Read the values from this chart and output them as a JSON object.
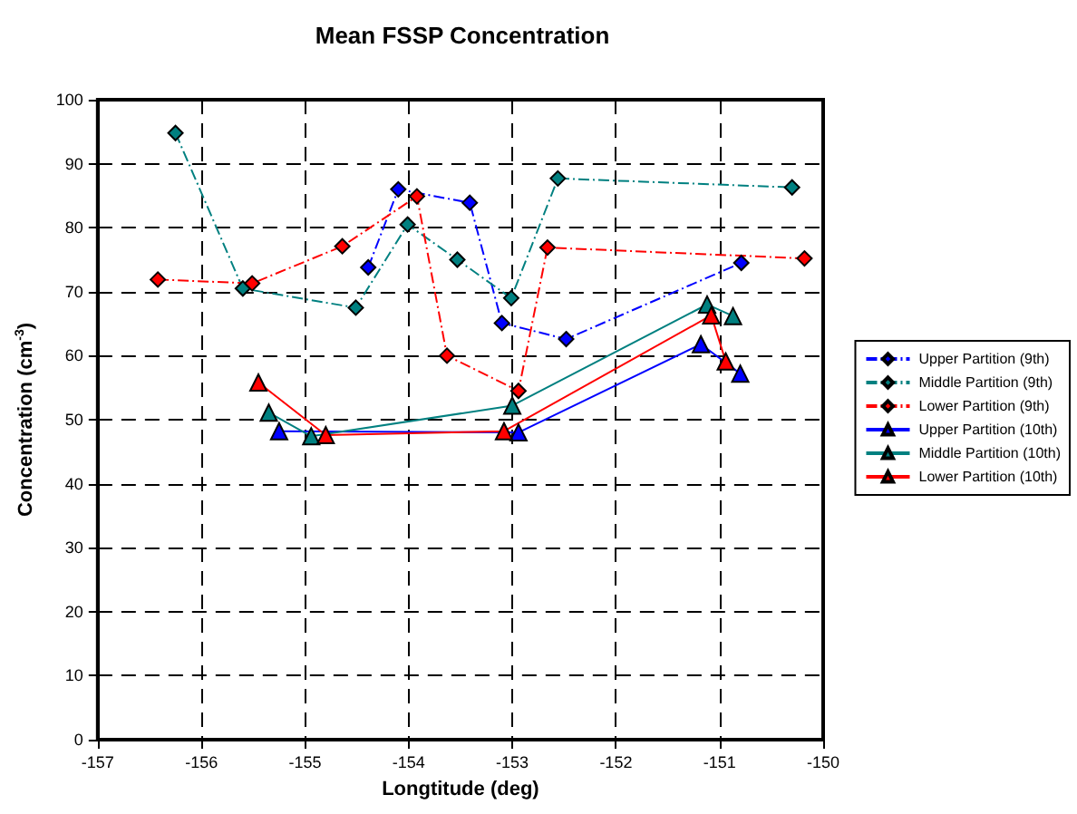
{
  "chart_data": {
    "type": "line",
    "title": "Mean FSSP Concentration",
    "xlabel": "Longtitude (deg)",
    "ylabel": "Concentration (cm$^{-3}$)",
    "xlim": [
      -157,
      -150
    ],
    "xticks": [
      -157,
      -156,
      -155,
      -154,
      -153,
      -152,
      -151,
      -150
    ],
    "ylim": [
      0,
      100
    ],
    "yticks": [
      0,
      10,
      20,
      30,
      40,
      50,
      60,
      70,
      80,
      90,
      100
    ],
    "grid": true,
    "legend": "right",
    "series": [
      {
        "name": "Upper Partition (9th)",
        "color": "#0000ff",
        "marker": "diamond",
        "line_style": "dashed",
        "x": [
          -154.39,
          -154.1,
          -153.41,
          -153.1,
          -152.48,
          -150.79
        ],
        "values": [
          73.8,
          86,
          83.9,
          65.1,
          62.6,
          74.5
        ]
      },
      {
        "name": "Middle Partition (9th)",
        "color": "#008080",
        "marker": "diamond",
        "line_style": "dashed",
        "x": [
          -156.25,
          -155.6,
          -154.51,
          -154.01,
          -153.53,
          -153.01,
          -152.56,
          -150.3
        ],
        "values": [
          94.8,
          70.5,
          67.5,
          80.5,
          75,
          69,
          87.7,
          86.3
        ]
      },
      {
        "name": "Lower Partition (9th)",
        "color": "#ff0000",
        "marker": "diamond",
        "line_style": "dashed",
        "x": [
          -156.42,
          -155.51,
          -154.64,
          -153.92,
          -153.63,
          -152.94,
          -152.66,
          -150.18
        ],
        "values": [
          71.9,
          71.3,
          77.1,
          84.9,
          60,
          54.5,
          76.9,
          75.2
        ]
      },
      {
        "name": "Upper Partition (10th)",
        "color": "#0000ff",
        "marker": "triangle",
        "line_style": "solid",
        "x": [
          -155.25,
          -152.94,
          -151.18,
          -150.8
        ],
        "values": [
          48.2,
          48,
          61.8,
          57.2
        ]
      },
      {
        "name": "Middle Partition (10th)",
        "color": "#008080",
        "marker": "triangle",
        "line_style": "solid",
        "x": [
          -155.35,
          -154.94,
          -153,
          -151.12,
          -150.87
        ],
        "values": [
          51.1,
          47.4,
          52.2,
          68,
          66.2
        ]
      },
      {
        "name": "Lower Partition (10th)",
        "color": "#ff0000",
        "marker": "triangle",
        "line_style": "solid",
        "x": [
          -155.45,
          -154.8,
          -153.08,
          -151.08,
          -150.94
        ],
        "values": [
          55.8,
          47.6,
          48.2,
          66.3,
          59.1
        ]
      }
    ]
  }
}
